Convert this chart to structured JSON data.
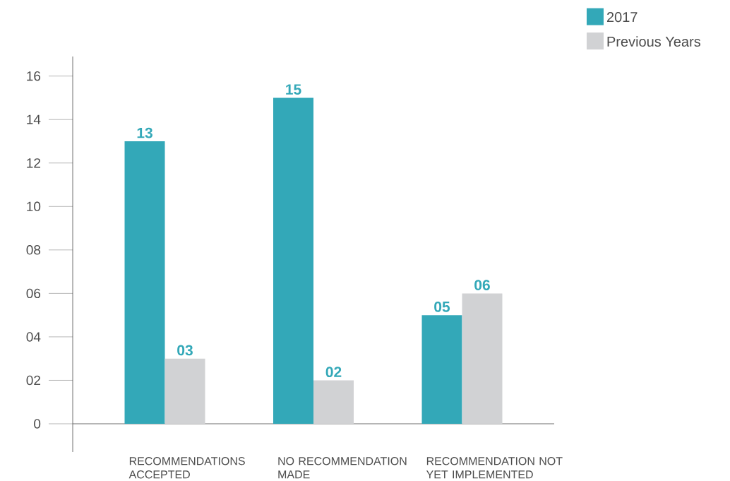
{
  "chart_data": {
    "type": "bar",
    "categories": [
      "RECOMMENDATIONS ACCEPTED",
      "NO RECOMMENDATION MADE",
      "RECOMMENDATION NOT YET IMPLEMENTED"
    ],
    "series": [
      {
        "name": "2017",
        "color": "#33a8b8",
        "values": [
          13,
          15,
          5
        ],
        "value_labels": [
          "13",
          "15",
          "05"
        ]
      },
      {
        "name": "Previous Years",
        "color": "#d1d2d4",
        "values": [
          3,
          2,
          6
        ],
        "value_labels": [
          "03",
          "02",
          "06"
        ]
      }
    ],
    "ylim": [
      -1.3,
      16.9
    ],
    "yticks": [
      0,
      {
        "value": 2,
        "label": "02"
      },
      {
        "value": 4,
        "label": "04"
      },
      {
        "value": 6,
        "label": "06"
      },
      {
        "value": 8,
        "label": "08"
      },
      10,
      12,
      14,
      16
    ],
    "legend": "top right"
  }
}
